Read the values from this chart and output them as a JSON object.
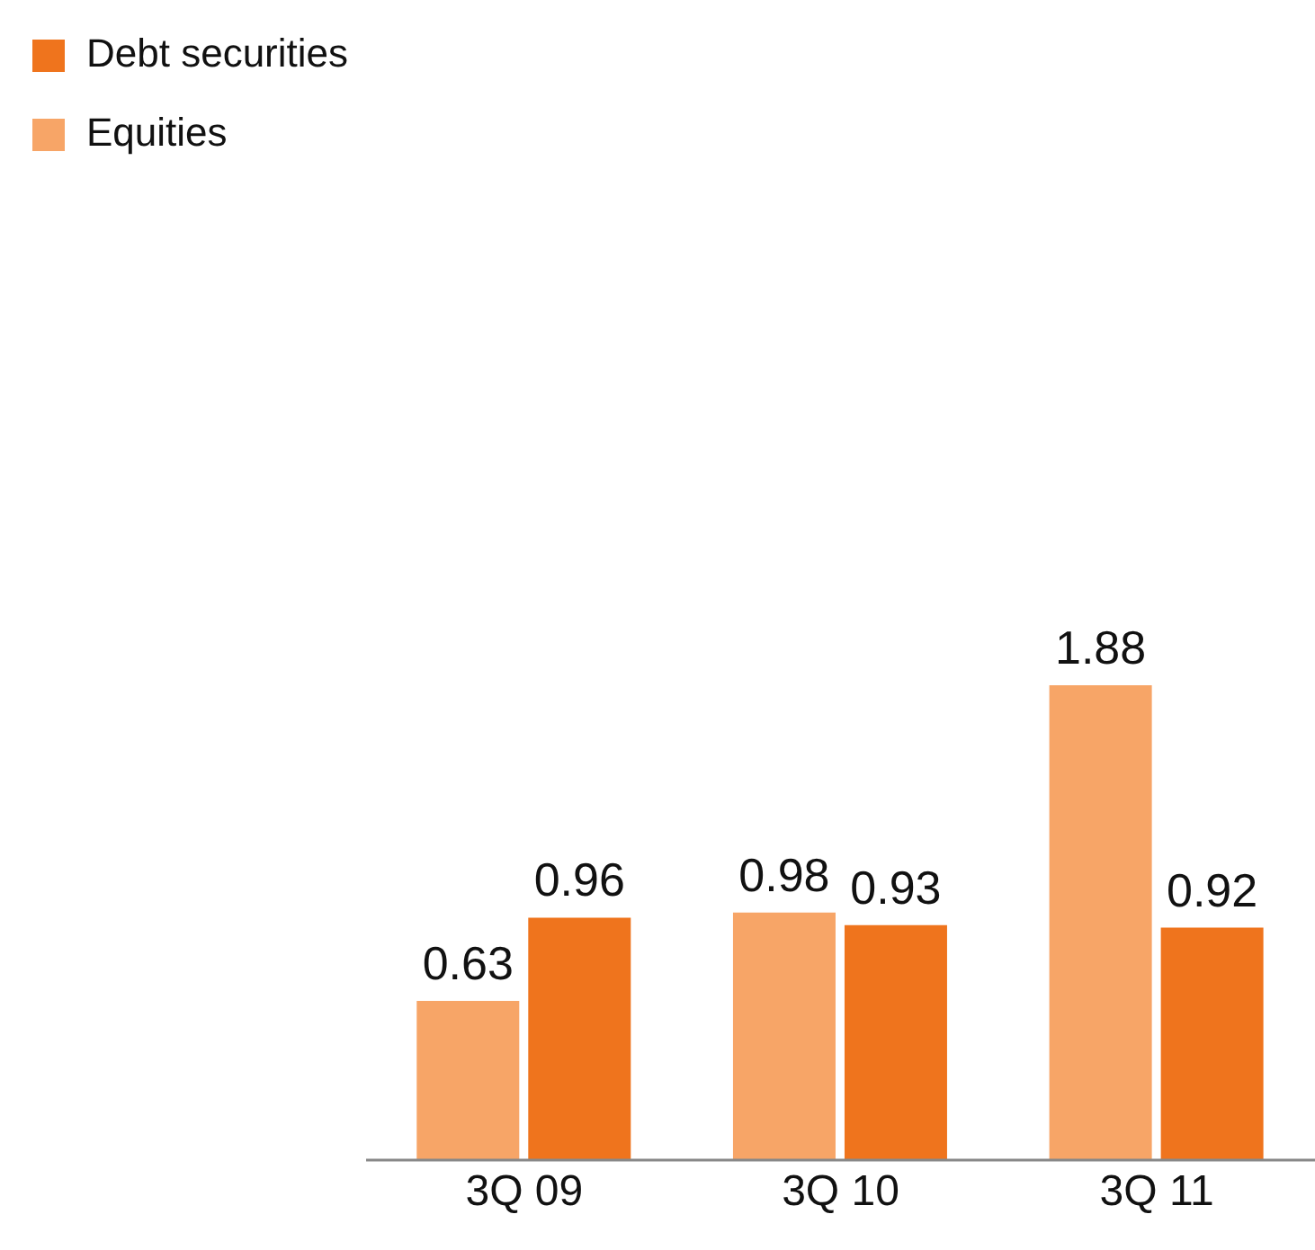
{
  "chart_data": {
    "type": "bar",
    "categories": [
      "3Q 09",
      "3Q 10",
      "3Q 11"
    ],
    "series": [
      {
        "name": "Equities",
        "color": "#f7a567",
        "values": [
          0.63,
          0.98,
          1.88
        ]
      },
      {
        "name": "Debt securities",
        "color": "#ef741d",
        "values": [
          0.96,
          0.93,
          0.92
        ]
      }
    ],
    "data_labels": true,
    "legend": "top left",
    "grid": false
  }
}
